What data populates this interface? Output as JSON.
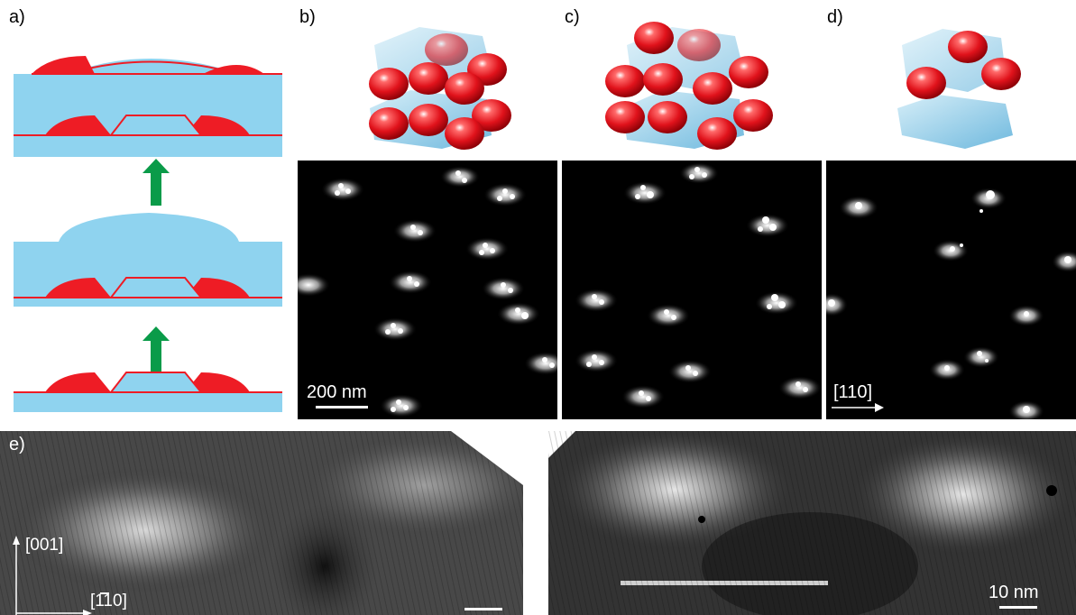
{
  "figure": {
    "panels": {
      "a": {
        "label": "a)"
      },
      "b": {
        "label": "b)"
      },
      "c": {
        "label": "c)"
      },
      "d": {
        "label": "d)"
      },
      "e": {
        "label": "e)"
      }
    },
    "scale_bars": {
      "afm": "200 nm",
      "stm": "10 nm"
    },
    "directions": {
      "afm_d": "[110]",
      "stm_vertical": "[001]",
      "stm_horizontal": "[110]"
    },
    "colors": {
      "substrate_blue": "#8fd3ef",
      "island_red": "#ee1c25",
      "arrow_green": "#0a9b49"
    }
  }
}
